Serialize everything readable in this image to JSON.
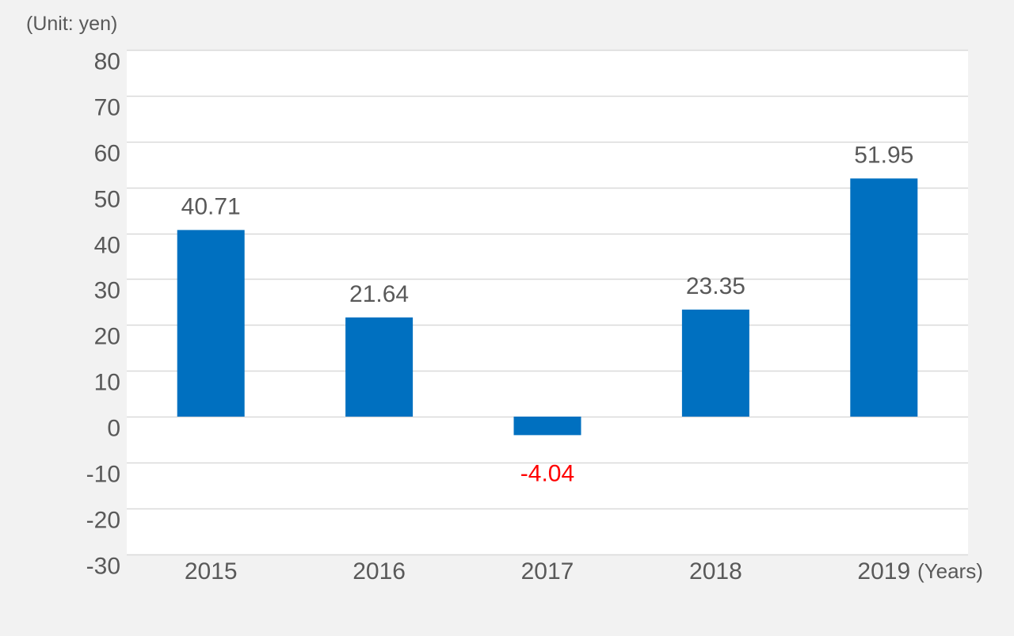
{
  "chart_data": {
    "type": "bar",
    "unit_label": "(Unit: yen)",
    "x_unit_label": "(Years)",
    "categories": [
      "2015",
      "2016",
      "2017",
      "2018",
      "2019"
    ],
    "values": [
      40.71,
      21.64,
      -4.04,
      23.35,
      51.95
    ],
    "value_labels": [
      "40.71",
      "21.64",
      "-4.04",
      "23.35",
      "51.95"
    ],
    "ylim": [
      -30,
      80
    ],
    "y_ticks": [
      80,
      70,
      60,
      50,
      40,
      30,
      20,
      10,
      0,
      -10,
      -20,
      -30
    ],
    "grid": true,
    "colors": {
      "bar": "#0070c0",
      "label_positive": "#595959",
      "label_negative": "#ff0000",
      "plot_background": "#ffffff",
      "page_background": "#f2f2f2",
      "gridline": "#d9d9d9"
    }
  }
}
